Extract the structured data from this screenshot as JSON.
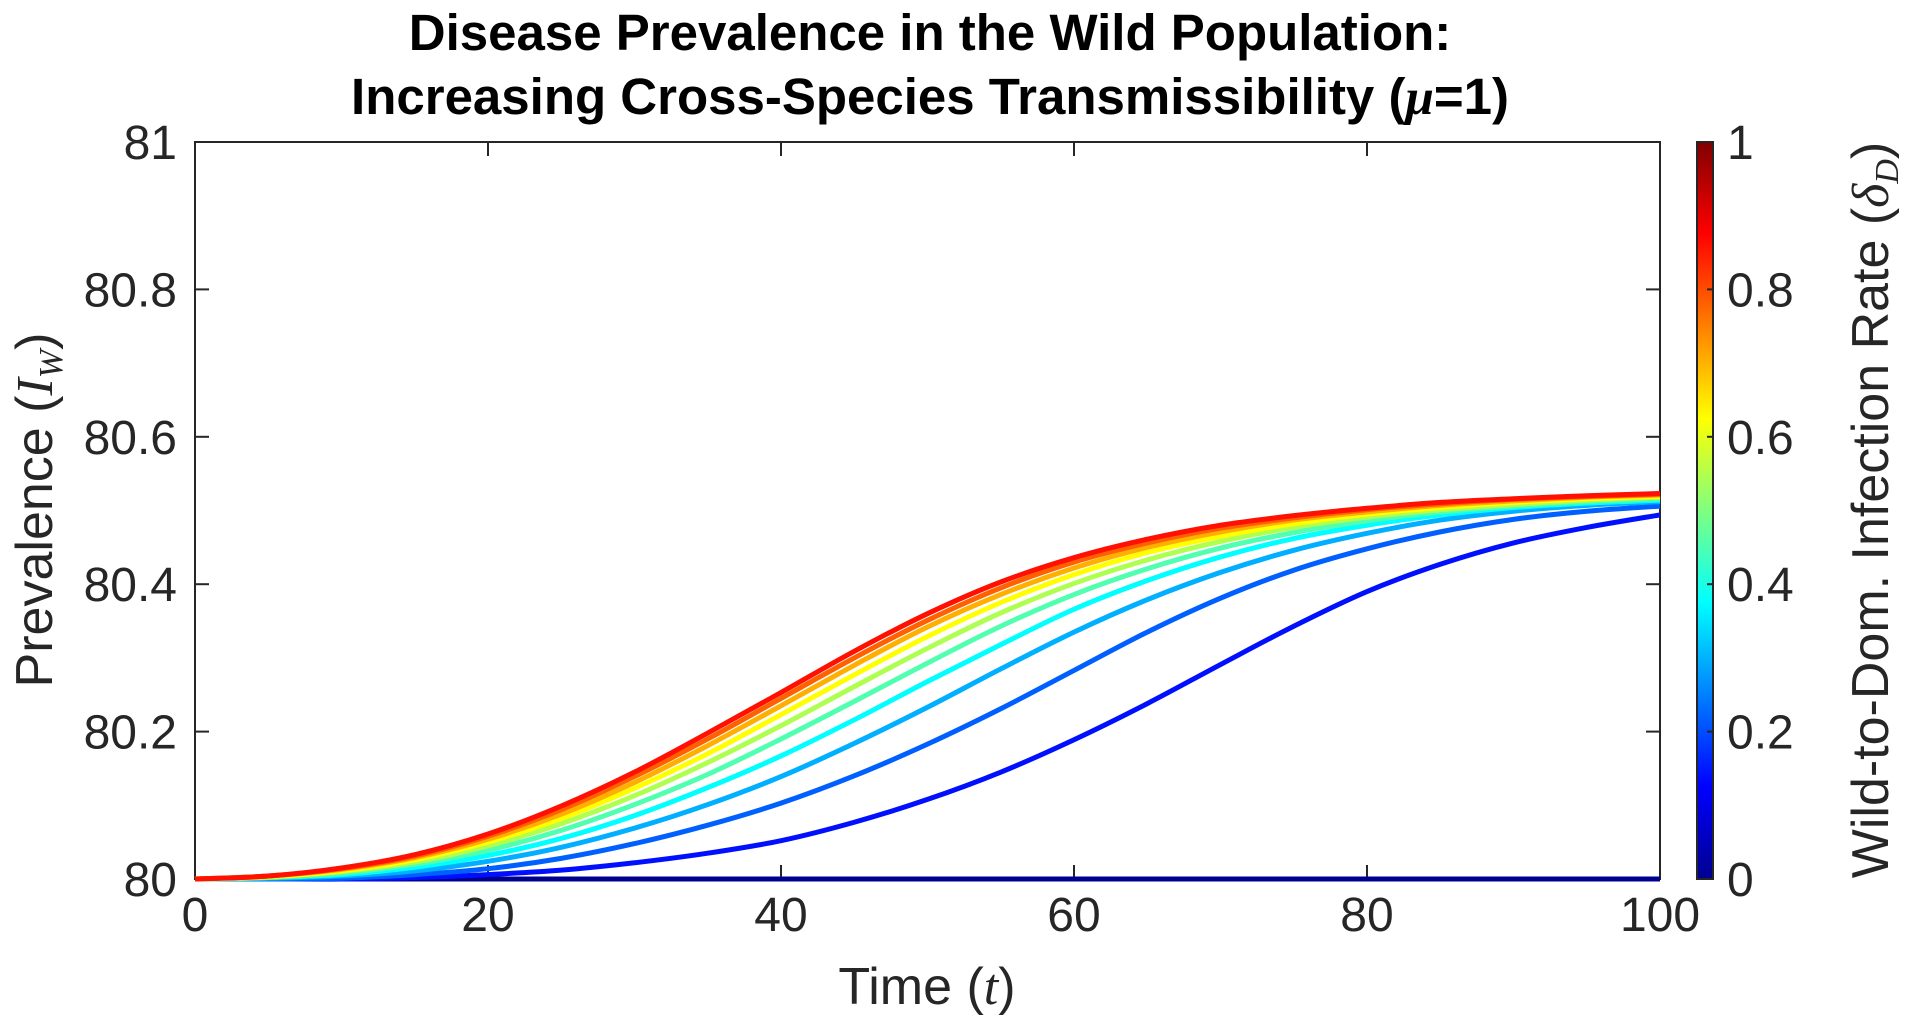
{
  "chart_data": {
    "type": "line",
    "title": [
      "Disease Prevalence in the Wild Population:",
      "Increasing Cross-Species Transmissibility (μ=1)"
    ],
    "title_parts": {
      "line1": "Disease Prevalence in the Wild Population:",
      "line2_prefix": "Increasing Cross-Species Transmissibility (",
      "line2_symbol": "μ",
      "line2_suffix": "=1)"
    },
    "xlabel": {
      "prefix": "Time (",
      "symbol": "t",
      "suffix": ")"
    },
    "ylabel": {
      "prefix": "Prevalence (",
      "symbol": "I",
      "subscript": "W",
      "suffix": ")"
    },
    "colorbar_label": {
      "prefix": "Wild-to-Dom. Infection Rate (",
      "symbol": "δ",
      "subscript": "D",
      "suffix": ")"
    },
    "xlim": [
      0,
      100
    ],
    "ylim": [
      80,
      81
    ],
    "xticks": [
      0,
      20,
      40,
      60,
      80,
      100
    ],
    "xtick_labels": [
      "0",
      "20",
      "40",
      "60",
      "80",
      "100"
    ],
    "yticks": [
      80,
      80.2,
      80.4,
      80.6,
      80.8,
      81
    ],
    "ytick_labels": [
      "80",
      "80.2",
      "80.4",
      "80.6",
      "80.8",
      "81"
    ],
    "colorbar": {
      "colormap": "jet",
      "range": [
        0,
        1
      ],
      "ticks": [
        0,
        0.2,
        0.4,
        0.6,
        0.8,
        1
      ],
      "tick_labels": [
        "0",
        "0.2",
        "0.4",
        "0.6",
        "0.8",
        "1"
      ]
    },
    "x": [
      0,
      5,
      10,
      15,
      20,
      25,
      30,
      35,
      40,
      45,
      50,
      55,
      60,
      65,
      70,
      75,
      80,
      85,
      90,
      95,
      100
    ],
    "series": [
      {
        "name": "δD = 0.0",
        "delta": 0.0,
        "color": "#00008f",
        "values": [
          80.0,
          80.0,
          80.0,
          80.0,
          80.0,
          80.0,
          80.0,
          80.0,
          80.0,
          80.0,
          80.0,
          80.0,
          80.0,
          80.0,
          80.0,
          80.0,
          80.0,
          80.0,
          80.0,
          80.0,
          80.0
        ]
      },
      {
        "name": "δD = 0.1",
        "delta": 0.1,
        "color": "#0010ff",
        "values": [
          80.0,
          80.0,
          80.0,
          80.002,
          80.006,
          80.012,
          80.022,
          80.035,
          80.052,
          80.077,
          80.108,
          80.145,
          80.189,
          80.238,
          80.291,
          80.343,
          80.39,
          80.427,
          80.456,
          80.477,
          80.494
        ]
      },
      {
        "name": "δD = 0.2",
        "delta": 0.2,
        "color": "#0060ff",
        "values": [
          80.0,
          80.0,
          80.001,
          80.006,
          80.014,
          80.028,
          80.048,
          80.073,
          80.103,
          80.14,
          80.183,
          80.231,
          80.283,
          80.335,
          80.381,
          80.419,
          80.448,
          80.471,
          80.488,
          80.499,
          80.506
        ]
      },
      {
        "name": "δD = 0.3",
        "delta": 0.3,
        "color": "#00afff",
        "values": [
          80.0,
          80.001,
          80.004,
          80.011,
          80.024,
          80.043,
          80.069,
          80.101,
          80.139,
          80.184,
          80.233,
          80.285,
          80.335,
          80.379,
          80.416,
          80.446,
          80.469,
          80.487,
          80.499,
          80.507,
          80.512
        ]
      },
      {
        "name": "δD = 0.4",
        "delta": 0.4,
        "color": "#00ffff",
        "values": [
          80.0,
          80.002,
          80.006,
          80.016,
          80.032,
          80.055,
          80.086,
          80.124,
          80.167,
          80.216,
          80.268,
          80.318,
          80.366,
          80.405,
          80.437,
          80.462,
          80.48,
          80.494,
          80.504,
          80.51,
          80.514
        ]
      },
      {
        "name": "δD = 0.5",
        "delta": 0.5,
        "color": "#50ffaf",
        "values": [
          80.0,
          80.002,
          80.008,
          80.02,
          80.039,
          80.066,
          80.101,
          80.142,
          80.19,
          80.241,
          80.293,
          80.343,
          80.386,
          80.421,
          80.449,
          80.47,
          80.486,
          80.498,
          80.506,
          80.512,
          80.516
        ]
      },
      {
        "name": "δD = 0.6",
        "delta": 0.6,
        "color": "#afff50",
        "values": [
          80.0,
          80.003,
          80.01,
          80.023,
          80.045,
          80.075,
          80.113,
          80.158,
          80.208,
          80.261,
          80.313,
          80.361,
          80.401,
          80.433,
          80.458,
          80.477,
          80.491,
          80.501,
          80.508,
          80.514,
          80.518
        ]
      },
      {
        "name": "δD = 0.7",
        "delta": 0.7,
        "color": "#ffff00",
        "values": [
          80.0,
          80.003,
          80.011,
          80.026,
          80.05,
          80.082,
          80.123,
          80.17,
          80.223,
          80.277,
          80.329,
          80.375,
          80.413,
          80.443,
          80.465,
          80.482,
          80.495,
          80.504,
          80.511,
          80.516,
          80.519
        ]
      },
      {
        "name": "δD = 0.8",
        "delta": 0.8,
        "color": "#ffaf00",
        "values": [
          80.0,
          80.004,
          80.013,
          80.029,
          80.054,
          80.088,
          80.131,
          80.181,
          80.235,
          80.29,
          80.342,
          80.386,
          80.422,
          80.45,
          80.471,
          80.487,
          80.498,
          80.507,
          80.513,
          80.518,
          80.521
        ]
      },
      {
        "name": "δD = 0.9",
        "delta": 0.9,
        "color": "#ff6000",
        "values": [
          80.0,
          80.004,
          80.014,
          80.031,
          80.058,
          80.094,
          80.139,
          80.19,
          80.245,
          80.3,
          80.351,
          80.395,
          80.43,
          80.456,
          80.476,
          80.49,
          80.501,
          80.509,
          80.515,
          80.519,
          80.522
        ]
      },
      {
        "name": "δD = 1.0",
        "delta": 1.0,
        "color": "#ff1000",
        "values": [
          80.0,
          80.004,
          80.015,
          80.033,
          80.061,
          80.099,
          80.145,
          80.198,
          80.253,
          80.309,
          80.36,
          80.403,
          80.436,
          80.461,
          80.48,
          80.493,
          80.503,
          80.511,
          80.516,
          80.52,
          80.523
        ]
      }
    ]
  }
}
